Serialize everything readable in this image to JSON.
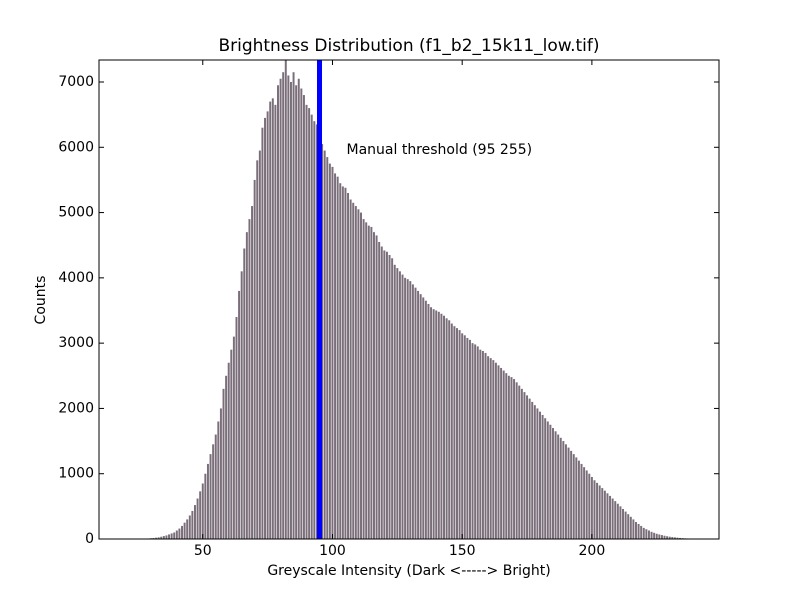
{
  "chart_data": {
    "type": "bar",
    "title": "Brightness Distribution (f1_b2_15k11_low.tif)",
    "xlabel": "Greyscale Intensity (Dark <-----> Bright)",
    "ylabel": "Counts",
    "annotation": "Manual threshold (95 255)",
    "vline": {
      "x": 95,
      "color": "#0000ff"
    },
    "color": "#7a6e7a",
    "xlim": [
      10,
      249
    ],
    "ylim": [
      0,
      7337
    ],
    "xticks": [
      50,
      100,
      150,
      200
    ],
    "yticks": [
      0,
      1000,
      2000,
      3000,
      4000,
      5000,
      6000,
      7000
    ],
    "x": [
      28,
      29,
      30,
      31,
      32,
      33,
      34,
      35,
      36,
      37,
      38,
      39,
      40,
      41,
      42,
      43,
      44,
      45,
      46,
      47,
      48,
      49,
      50,
      51,
      52,
      53,
      54,
      55,
      56,
      57,
      58,
      59,
      60,
      61,
      62,
      63,
      64,
      65,
      66,
      67,
      68,
      69,
      70,
      71,
      72,
      73,
      74,
      75,
      76,
      77,
      78,
      79,
      80,
      81,
      82,
      83,
      84,
      85,
      86,
      87,
      88,
      89,
      90,
      91,
      92,
      93,
      94,
      95,
      96,
      97,
      98,
      99,
      100,
      101,
      102,
      103,
      104,
      105,
      106,
      107,
      108,
      109,
      110,
      111,
      112,
      113,
      114,
      115,
      116,
      117,
      118,
      119,
      120,
      121,
      122,
      123,
      124,
      125,
      126,
      127,
      128,
      129,
      130,
      131,
      132,
      133,
      134,
      135,
      136,
      137,
      138,
      139,
      140,
      141,
      142,
      143,
      144,
      145,
      146,
      147,
      148,
      149,
      150,
      151,
      152,
      153,
      154,
      155,
      156,
      157,
      158,
      159,
      160,
      161,
      162,
      163,
      164,
      165,
      166,
      167,
      168,
      169,
      170,
      171,
      172,
      173,
      174,
      175,
      176,
      177,
      178,
      179,
      180,
      181,
      182,
      183,
      184,
      185,
      186,
      187,
      188,
      189,
      190,
      191,
      192,
      193,
      194,
      195,
      196,
      197,
      198,
      199,
      200,
      201,
      202,
      203,
      204,
      205,
      206,
      207,
      208,
      209,
      210,
      211,
      212,
      213,
      214,
      215,
      216,
      217,
      218,
      219,
      220,
      221,
      222,
      223,
      224,
      225,
      226,
      227,
      228,
      229,
      230,
      231,
      232,
      233,
      234,
      235,
      236,
      237,
      238,
      239,
      240,
      241,
      242,
      243
    ],
    "values": [
      5,
      8,
      12,
      15,
      20,
      25,
      35,
      45,
      55,
      70,
      85,
      100,
      130,
      160,
      200,
      250,
      300,
      360,
      430,
      520,
      620,
      730,
      850,
      1000,
      1150,
      1300,
      1450,
      1600,
      1800,
      2000,
      2300,
      2500,
      2700,
      2900,
      3100,
      3400,
      3800,
      4100,
      4450,
      4700,
      4900,
      5100,
      5500,
      5800,
      5950,
      6300,
      6450,
      6550,
      6700,
      6750,
      6650,
      6950,
      7050,
      7150,
      7337,
      7100,
      7000,
      7150,
      6950,
      7050,
      6900,
      6800,
      6650,
      6600,
      6500,
      6400,
      6350,
      6150,
      6050,
      5950,
      5850,
      5750,
      5700,
      5600,
      5550,
      5450,
      5400,
      5380,
      5300,
      5200,
      5150,
      5100,
      5050,
      5000,
      4900,
      4850,
      4800,
      4780,
      4700,
      4650,
      4550,
      4480,
      4420,
      4400,
      4350,
      4300,
      4200,
      4150,
      4100,
      4050,
      4000,
      3980,
      3950,
      3900,
      3850,
      3800,
      3750,
      3700,
      3650,
      3600,
      3550,
      3520,
      3500,
      3480,
      3450,
      3420,
      3380,
      3350,
      3300,
      3260,
      3230,
      3200,
      3150,
      3120,
      3080,
      3050,
      3000,
      2980,
      2950,
      2900,
      2880,
      2850,
      2800,
      2770,
      2740,
      2700,
      2660,
      2620,
      2580,
      2540,
      2500,
      2480,
      2450,
      2400,
      2350,
      2300,
      2250,
      2200,
      2150,
      2100,
      2050,
      2000,
      1950,
      1900,
      1850,
      1800,
      1750,
      1700,
      1650,
      1600,
      1550,
      1500,
      1450,
      1400,
      1350,
      1300,
      1250,
      1200,
      1150,
      1100,
      1050,
      1000,
      950,
      900,
      860,
      820,
      780,
      740,
      700,
      660,
      620,
      580,
      540,
      500,
      460,
      420,
      380,
      340,
      300,
      260,
      230,
      200,
      170,
      150,
      130,
      110,
      95,
      80,
      70,
      60,
      50,
      42,
      35,
      30,
      25,
      20,
      16,
      13,
      10,
      8,
      6,
      5,
      4,
      3,
      2,
      1
    ]
  }
}
